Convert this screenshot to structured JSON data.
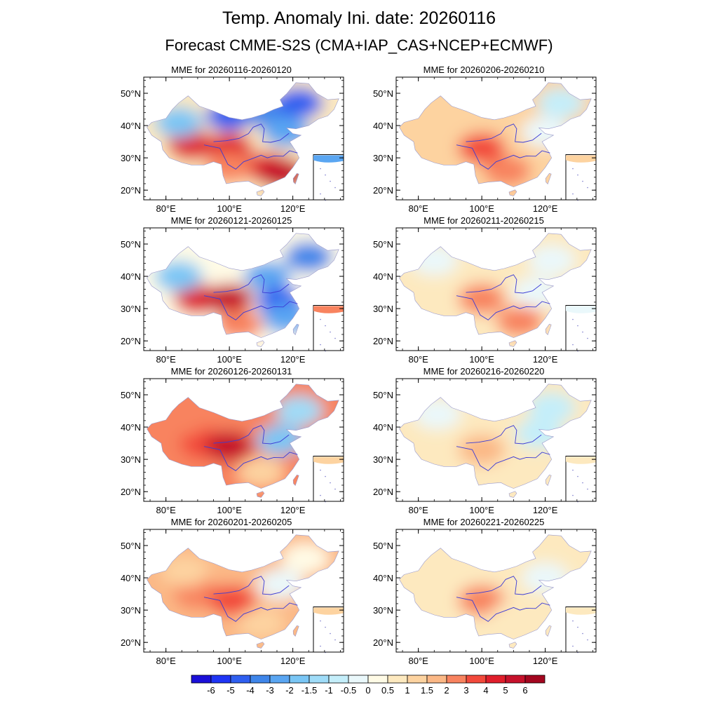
{
  "title": "Temp. Anomaly Ini. date: 20260116",
  "subtitle": "Forecast CMME-S2S (CMA+IAP_CAS+NCEP+ECMWF)",
  "chart_data": {
    "type": "heatmap",
    "variable": "2m temperature anomaly (MME)",
    "x_ticks": [
      "80°E",
      "100°E",
      "120°E"
    ],
    "y_ticks": [
      "20°N",
      "30°N",
      "40°N",
      "50°N"
    ],
    "lon_range": [
      73,
      136
    ],
    "lat_range": [
      17,
      55
    ],
    "x_tick_values": [
      80,
      100,
      120
    ],
    "y_tick_values": [
      20,
      30,
      40,
      50
    ],
    "legend_levels": [
      "-6",
      "-5",
      "-4",
      "-3",
      "-2",
      "-1.5",
      "-1",
      "-0.5",
      "0",
      "0.5",
      "1",
      "1.5",
      "2",
      "3",
      "4",
      "5",
      "6"
    ],
    "legend_colors": [
      "#1a0fd8",
      "#1f35f5",
      "#2f5ff0",
      "#3f86ea",
      "#5aa6f2",
      "#7ac6f5",
      "#9fdcf8",
      "#c4eefa",
      "#eaf8fb",
      "#fffbe6",
      "#fde9bf",
      "#fdd3a0",
      "#fbb886",
      "#f8835f",
      "#f2493b",
      "#e01e2b",
      "#c6112b",
      "#a3061f"
    ],
    "panels": [
      {
        "label": "MME for 20260116-20260120",
        "blobs": [
          {
            "lon": 100,
            "lat": 36,
            "v": 0.5
          },
          {
            "lon": 88,
            "lat": 34,
            "v": 4
          },
          {
            "lon": 100,
            "lat": 33,
            "v": 4
          },
          {
            "lon": 112,
            "lat": 27,
            "v": 4
          },
          {
            "lon": 117,
            "lat": 25,
            "v": 5
          },
          {
            "lon": 100,
            "lat": 27,
            "v": 2
          },
          {
            "lon": 84,
            "lat": 41,
            "v": -2
          },
          {
            "lon": 100,
            "lat": 43,
            "v": -5
          },
          {
            "lon": 112,
            "lat": 44,
            "v": -4
          },
          {
            "lon": 122,
            "lat": 47,
            "v": -5
          },
          {
            "lon": 118,
            "lat": 38,
            "v": -3
          }
        ]
      },
      {
        "label": "MME for 20260121-20260125",
        "blobs": [
          {
            "lon": 95,
            "lat": 36,
            "v": 0
          },
          {
            "lon": 90,
            "lat": 33,
            "v": 4
          },
          {
            "lon": 100,
            "lat": 33,
            "v": 5
          },
          {
            "lon": 84,
            "lat": 40,
            "v": -2
          },
          {
            "lon": 112,
            "lat": 40,
            "v": -3
          },
          {
            "lon": 116,
            "lat": 32,
            "v": -5
          },
          {
            "lon": 118,
            "lat": 27,
            "v": -3
          },
          {
            "lon": 125,
            "lat": 46,
            "v": -4
          },
          {
            "lon": 103,
            "lat": 25,
            "v": 2
          }
        ]
      },
      {
        "label": "MME for 20260126-20260131",
        "blobs": [
          {
            "lon": 95,
            "lat": 38,
            "v": 2
          },
          {
            "lon": 92,
            "lat": 35,
            "v": 3
          },
          {
            "lon": 100,
            "lat": 34,
            "v": 5
          },
          {
            "lon": 85,
            "lat": 42,
            "v": 2
          },
          {
            "lon": 116,
            "lat": 36,
            "v": -2
          },
          {
            "lon": 122,
            "lat": 45,
            "v": -1.5
          },
          {
            "lon": 110,
            "lat": 26,
            "v": 1
          }
        ]
      },
      {
        "label": "MME for 20260201-20260205",
        "blobs": [
          {
            "lon": 95,
            "lat": 37,
            "v": 1.5
          },
          {
            "lon": 90,
            "lat": 35,
            "v": 2
          },
          {
            "lon": 101,
            "lat": 33,
            "v": 3
          },
          {
            "lon": 86,
            "lat": 42,
            "v": 1
          },
          {
            "lon": 116,
            "lat": 38,
            "v": -0.5
          },
          {
            "lon": 124,
            "lat": 46,
            "v": 0
          },
          {
            "lon": 110,
            "lat": 26,
            "v": 1
          }
        ]
      },
      {
        "label": "MME for 20260206-20260210",
        "blobs": [
          {
            "lon": 95,
            "lat": 37,
            "v": 1
          },
          {
            "lon": 100,
            "lat": 33,
            "v": 3
          },
          {
            "lon": 108,
            "lat": 26,
            "v": 2
          },
          {
            "lon": 120,
            "lat": 38,
            "v": -0.5
          },
          {
            "lon": 125,
            "lat": 47,
            "v": -1
          },
          {
            "lon": 85,
            "lat": 40,
            "v": 1
          }
        ]
      },
      {
        "label": "MME for 20260211-20260215",
        "blobs": [
          {
            "lon": 95,
            "lat": 38,
            "v": 0.5
          },
          {
            "lon": 100,
            "lat": 33,
            "v": 2
          },
          {
            "lon": 112,
            "lat": 26,
            "v": 2
          },
          {
            "lon": 85,
            "lat": 45,
            "v": -0.5
          },
          {
            "lon": 122,
            "lat": 45,
            "v": -0.5
          },
          {
            "lon": 117,
            "lat": 35,
            "v": -0.5
          }
        ]
      },
      {
        "label": "MME for 20260216-20260220",
        "blobs": [
          {
            "lon": 95,
            "lat": 37,
            "v": 0.5
          },
          {
            "lon": 100,
            "lat": 33,
            "v": 1.5
          },
          {
            "lon": 118,
            "lat": 38,
            "v": -1
          },
          {
            "lon": 122,
            "lat": 46,
            "v": -1
          },
          {
            "lon": 86,
            "lat": 44,
            "v": -0.5
          },
          {
            "lon": 112,
            "lat": 27,
            "v": 0.5
          }
        ]
      },
      {
        "label": "MME for 20260221-20260225",
        "blobs": [
          {
            "lon": 95,
            "lat": 37,
            "v": 0.5
          },
          {
            "lon": 100,
            "lat": 33,
            "v": 2
          },
          {
            "lon": 120,
            "lat": 40,
            "v": -0.5
          },
          {
            "lon": 110,
            "lat": 28,
            "v": 0.5
          },
          {
            "lon": 88,
            "lat": 42,
            "v": 0.5
          }
        ]
      }
    ]
  }
}
